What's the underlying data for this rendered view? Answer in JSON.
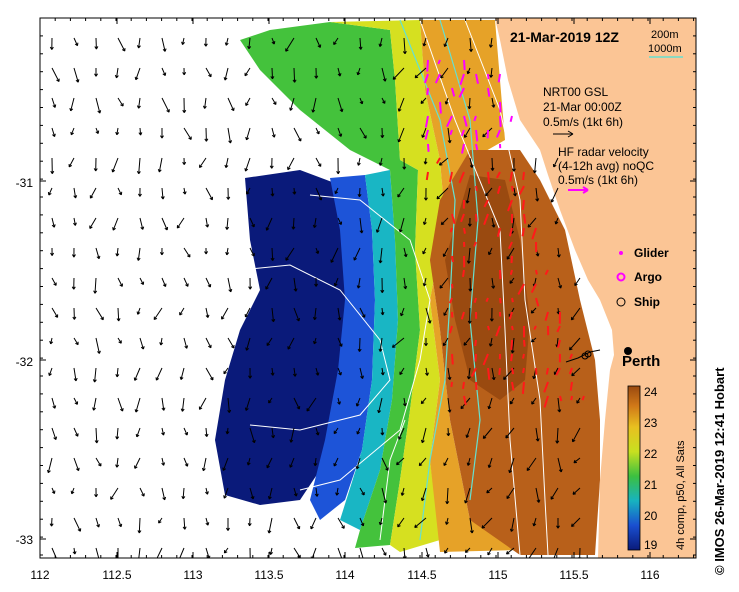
{
  "title": "21-Mar-2019 12Z",
  "isobath_legend": {
    "depth1": "200m",
    "depth2": "1000m",
    "color_200m": "#000000",
    "color_1000m": "#66e0d0"
  },
  "model_vectors": {
    "name": "NRT00 GSL",
    "time": "21-Mar 00:00Z",
    "scale": "0.5m/s (1kt 6h)"
  },
  "radar_vectors": {
    "line1": "HF radar velocity",
    "line2": "(4-12h avg) noQC",
    "scale": "0.5m/s (1kt 6h)",
    "color": "#ff00ff"
  },
  "markers": {
    "glider": "Glider",
    "argo": "Argo",
    "ship": "Ship"
  },
  "city": "Perth",
  "colorbar": {
    "ticks": [
      "24",
      "23",
      "22",
      "21",
      "20",
      "19"
    ],
    "label": "4h comp, p50, All Sats",
    "min": 19,
    "max": 24
  },
  "axes": {
    "x_ticks": [
      "112",
      "112.5",
      "113",
      "113.5",
      "114",
      "114.5",
      "115",
      "115.5",
      "116"
    ],
    "y_ticks": [
      "-31",
      "-32",
      "-33"
    ]
  },
  "credit": "© IMOS 26-Mar-2019 12:41 Hobart",
  "colors": {
    "land": "#fbc595",
    "low_temp": "#0a1a7a",
    "high_temp": "#b05a10",
    "radar_arrow": "#ff1a1a"
  }
}
